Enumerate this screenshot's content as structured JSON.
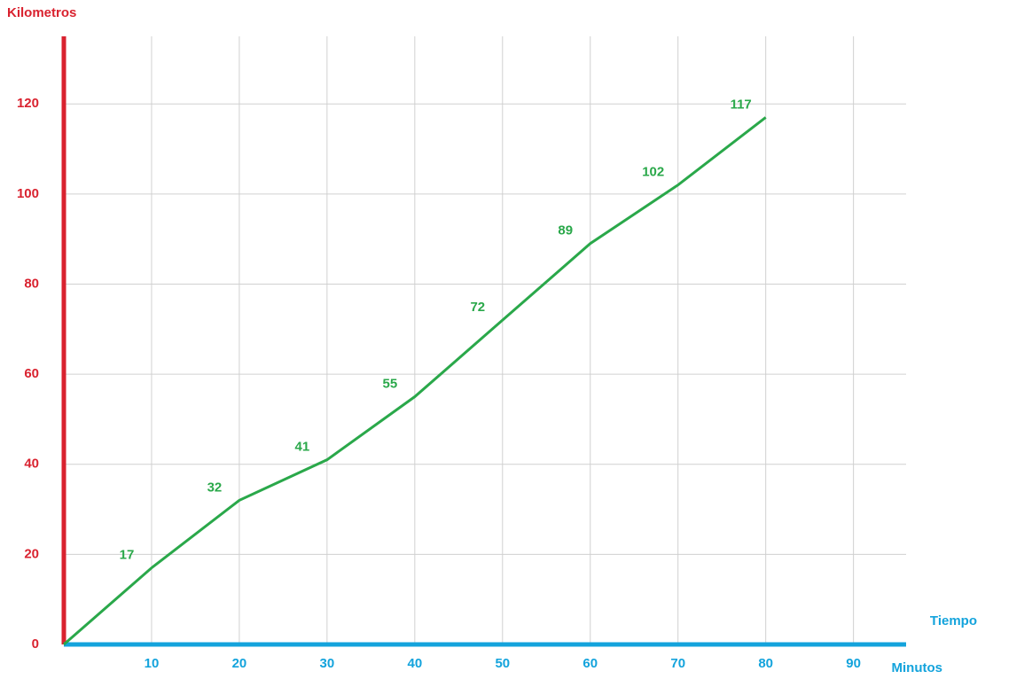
{
  "chart_data": {
    "type": "line",
    "y_label": "Kilometros",
    "x_label_top": "Tiempo",
    "x_label": "Minutos",
    "x": [
      0,
      10,
      20,
      30,
      40,
      50,
      60,
      70,
      80
    ],
    "series": [
      {
        "name": "Kilometros",
        "color": "#2aa84a",
        "values": [
          0,
          17,
          32,
          41,
          55,
          72,
          89,
          102,
          117
        ],
        "value_labels": [
          null,
          "17",
          "32",
          "41",
          "55",
          "72",
          "89",
          "102",
          "117"
        ]
      }
    ],
    "xlim": [
      0,
      96
    ],
    "xticks": [
      10,
      20,
      30,
      40,
      50,
      60,
      70,
      80,
      90
    ],
    "ylim": [
      0,
      135
    ],
    "yticks": [
      0,
      20,
      40,
      60,
      80,
      100,
      120
    ],
    "grid": true,
    "y_axis_color": "#d9222f",
    "x_axis_color": "#13a3dc"
  }
}
